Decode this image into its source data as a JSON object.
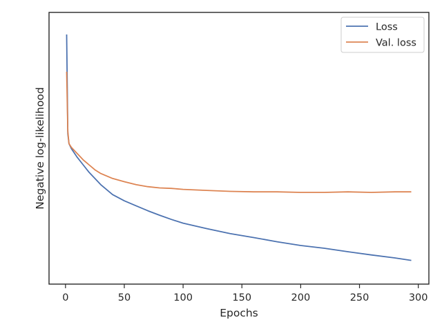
{
  "chart_data": {
    "type": "line",
    "xlabel": "Epochs",
    "ylabel": "Negative log-likelihood",
    "xlim": [
      -14,
      309
    ],
    "ylim": [
      0,
      1
    ],
    "x_ticks": [
      0,
      50,
      100,
      150,
      200,
      250,
      300
    ],
    "y_ticks_shown": false,
    "grid": false,
    "legend": "top-right",
    "series": [
      {
        "name": "Loss",
        "color": "#4c72b0",
        "x": [
          1,
          2,
          3,
          5,
          10,
          15,
          20,
          25,
          30,
          40,
          50,
          60,
          70,
          80,
          90,
          100,
          120,
          140,
          160,
          180,
          200,
          220,
          240,
          260,
          280,
          294
        ],
        "y": [
          0.95,
          0.55,
          0.51,
          0.49,
          0.455,
          0.425,
          0.395,
          0.37,
          0.345,
          0.305,
          0.28,
          0.26,
          0.24,
          0.222,
          0.205,
          0.19,
          0.168,
          0.148,
          0.132,
          0.115,
          0.1,
          0.089,
          0.075,
          0.062,
          0.05,
          0.04
        ]
      },
      {
        "name": "Val. loss",
        "color": "#dd8452",
        "x": [
          1,
          2,
          3,
          5,
          10,
          15,
          20,
          25,
          30,
          40,
          50,
          60,
          70,
          80,
          90,
          100,
          120,
          140,
          160,
          180,
          200,
          220,
          240,
          260,
          280,
          294
        ],
        "y": [
          0.8,
          0.56,
          0.51,
          0.495,
          0.47,
          0.445,
          0.425,
          0.405,
          0.39,
          0.37,
          0.357,
          0.345,
          0.337,
          0.332,
          0.33,
          0.326,
          0.322,
          0.318,
          0.316,
          0.316,
          0.314,
          0.314,
          0.316,
          0.314,
          0.316,
          0.316
        ]
      }
    ]
  }
}
